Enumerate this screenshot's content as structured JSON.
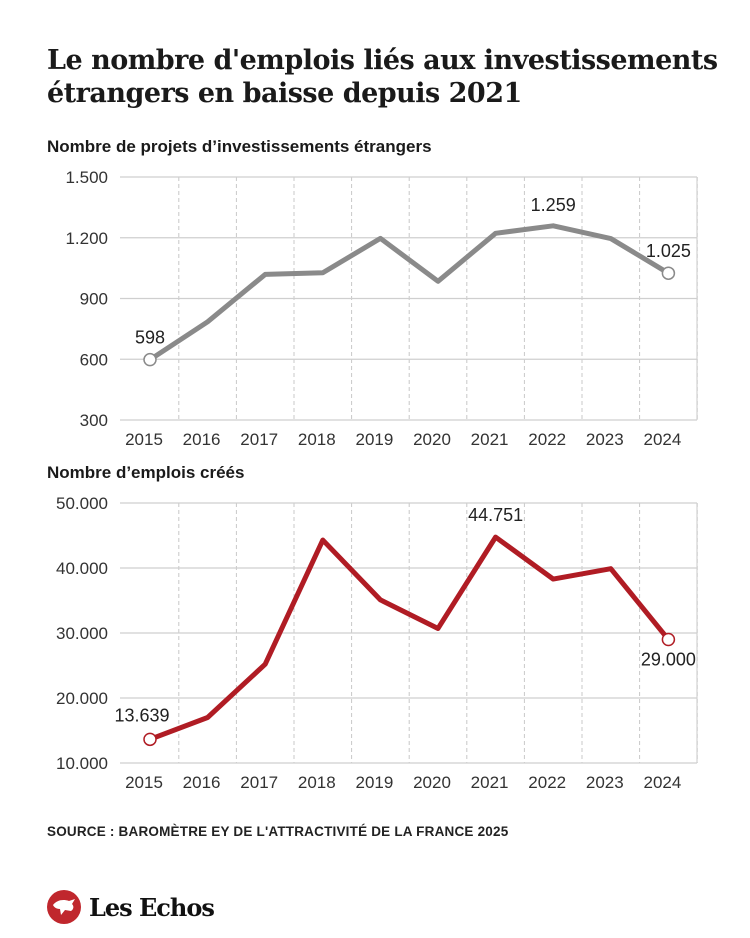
{
  "title": "Le nombre d'emplois liés aux investissements étrangers en baisse depuis 2021",
  "source": "SOURCE : BAROMÈTRE EY DE L'ATTRACTIVITÉ DE LA FRANCE 2025",
  "logo": {
    "text": "Les Echos",
    "color": "#c0272d"
  },
  "chart_data": [
    {
      "type": "line",
      "title": "Nombre de projets d’investissements étrangers",
      "categories": [
        "2015",
        "2016",
        "2017",
        "2018",
        "2019",
        "2020",
        "2021",
        "2022",
        "2023",
        "2024"
      ],
      "values": [
        598,
        785,
        1019,
        1027,
        1197,
        985,
        1222,
        1259,
        1196,
        1025
      ],
      "yticks": [
        300,
        600,
        900,
        1200,
        1500
      ],
      "ytick_labels": [
        "300",
        "600",
        "900",
        "1.200",
        "1.500"
      ],
      "ylim": [
        300,
        1500
      ],
      "data_labels": [
        {
          "index": 0,
          "text": "598"
        },
        {
          "index": 7,
          "text": "1.259"
        },
        {
          "index": 9,
          "text": "1.025"
        }
      ],
      "color": "#8a8a8a",
      "grid": true
    },
    {
      "type": "line",
      "title": "Nombre d’emplois créés",
      "categories": [
        "2015",
        "2016",
        "2017",
        "2018",
        "2019",
        "2020",
        "2021",
        "2022",
        "2023",
        "2024"
      ],
      "values": [
        13639,
        17000,
        25200,
        44300,
        35100,
        30700,
        44751,
        38300,
        39900,
        29000
      ],
      "yticks": [
        10000,
        20000,
        30000,
        40000,
        50000
      ],
      "ytick_labels": [
        "10.000",
        "20.000",
        "30.000",
        "40.000",
        "50.000"
      ],
      "ylim": [
        10000,
        50000
      ],
      "data_labels": [
        {
          "index": 0,
          "text": "13.639"
        },
        {
          "index": 6,
          "text": "44.751"
        },
        {
          "index": 9,
          "text": "29.000"
        }
      ],
      "color": "#b01c24",
      "grid": true
    }
  ]
}
